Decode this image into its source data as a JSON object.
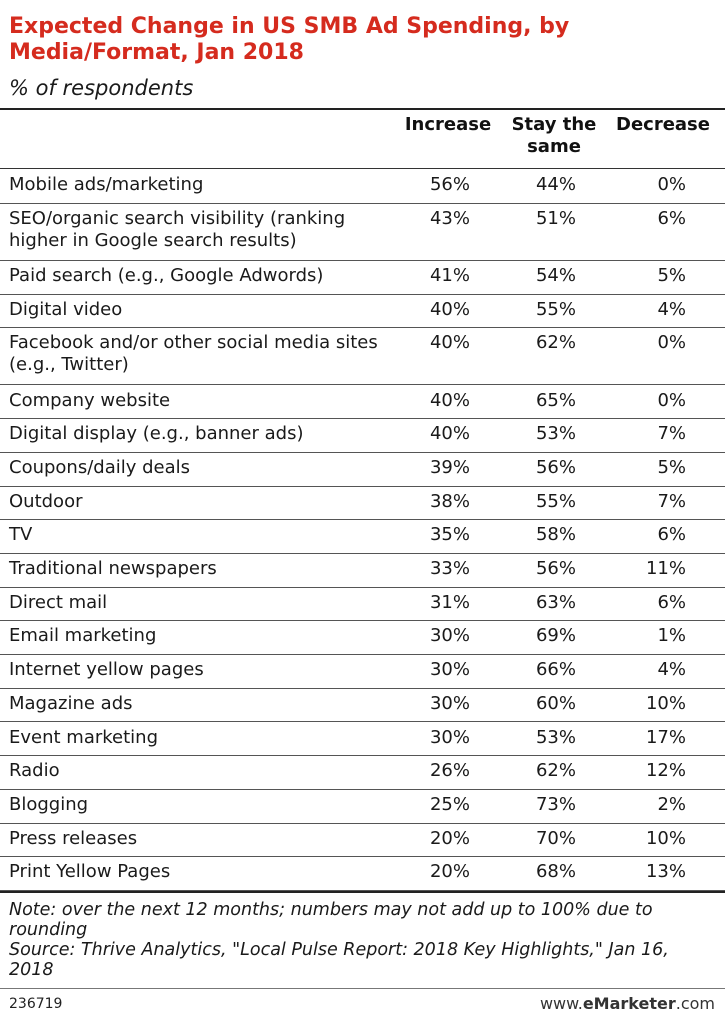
{
  "title": "Expected Change in US SMB Ad Spending, by Media/Format, Jan 2018",
  "subtitle": "% of respondents",
  "columns": [
    "Increase",
    "Stay the same",
    "Decrease"
  ],
  "chart_data": {
    "type": "table",
    "title": "Expected Change in US SMB Ad Spending, by Media/Format, Jan 2018",
    "subtitle": "% of respondents",
    "columns": [
      "Increase",
      "Stay the same",
      "Decrease"
    ],
    "rows": [
      {
        "label": "Mobile ads/marketing",
        "values": [
          "56%",
          "44%",
          "0%"
        ]
      },
      {
        "label": "SEO/organic search visibility (ranking higher in Google search results)",
        "values": [
          "43%",
          "51%",
          "6%"
        ]
      },
      {
        "label": "Paid search (e.g., Google Adwords)",
        "values": [
          "41%",
          "54%",
          "5%"
        ]
      },
      {
        "label": "Digital video",
        "values": [
          "40%",
          "55%",
          "4%"
        ]
      },
      {
        "label": "Facebook and/or other social media sites (e.g., Twitter)",
        "values": [
          "40%",
          "62%",
          "0%"
        ]
      },
      {
        "label": "Company website",
        "values": [
          "40%",
          "65%",
          "0%"
        ]
      },
      {
        "label": "Digital display (e.g., banner ads)",
        "values": [
          "40%",
          "53%",
          "7%"
        ]
      },
      {
        "label": "Coupons/daily deals",
        "values": [
          "39%",
          "56%",
          "5%"
        ]
      },
      {
        "label": "Outdoor",
        "values": [
          "38%",
          "55%",
          "7%"
        ]
      },
      {
        "label": "TV",
        "values": [
          "35%",
          "58%",
          "6%"
        ]
      },
      {
        "label": "Traditional newspapers",
        "values": [
          "33%",
          "56%",
          "11%"
        ]
      },
      {
        "label": "Direct mail",
        "values": [
          "31%",
          "63%",
          "6%"
        ]
      },
      {
        "label": "Email marketing",
        "values": [
          "30%",
          "69%",
          "1%"
        ]
      },
      {
        "label": "Internet yellow pages",
        "values": [
          "30%",
          "66%",
          "4%"
        ]
      },
      {
        "label": "Magazine ads",
        "values": [
          "30%",
          "60%",
          "10%"
        ]
      },
      {
        "label": "Event marketing",
        "values": [
          "30%",
          "53%",
          "17%"
        ]
      },
      {
        "label": "Radio",
        "values": [
          "26%",
          "62%",
          "12%"
        ]
      },
      {
        "label": "Blogging",
        "values": [
          "25%",
          "73%",
          "2%"
        ]
      },
      {
        "label": "Press releases",
        "values": [
          "20%",
          "70%",
          "10%"
        ]
      },
      {
        "label": "Print Yellow Pages",
        "values": [
          "20%",
          "68%",
          "13%"
        ]
      }
    ]
  },
  "note": "Note: over the next 12 months; numbers may not add up to 100% due to rounding",
  "source": "Source: Thrive Analytics, \"Local Pulse Report: 2018 Key Highlights,\" Jan 16, 2018",
  "chart_id": "236719",
  "logo": {
    "prefix": "www.",
    "brand": "eMarketer",
    "suffix": ".com"
  },
  "colors": {
    "title": "#d52b1e",
    "text": "#1a1a1a",
    "rule": "#555555"
  }
}
